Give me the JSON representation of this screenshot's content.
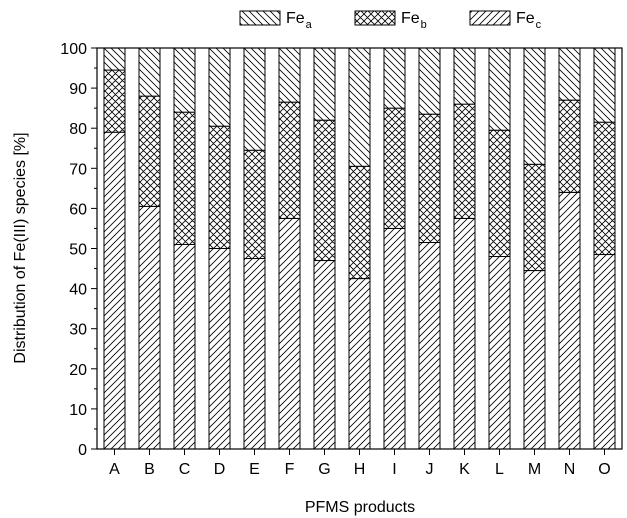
{
  "chart_data": {
    "type": "bar",
    "stacked": true,
    "percent_stacked": true,
    "xlabel": "PFMS products",
    "ylabel": "Distribution of Fe(III) species [%]",
    "ylim": [
      0,
      100
    ],
    "yticks": [
      0,
      10,
      20,
      30,
      40,
      50,
      60,
      70,
      80,
      90,
      100
    ],
    "grid": false,
    "legend_position": "top",
    "categories": [
      "A",
      "B",
      "C",
      "D",
      "E",
      "F",
      "G",
      "H",
      "I",
      "J",
      "K",
      "L",
      "M",
      "N",
      "O"
    ],
    "series": [
      {
        "name": "Fe_c",
        "label_main": "Fe",
        "label_sub": "c",
        "pattern": "forward-hatch",
        "values": [
          79,
          60.5,
          51,
          50,
          47.5,
          57.5,
          47,
          42.5,
          55,
          51.5,
          57.5,
          48,
          44.5,
          64,
          48.5
        ]
      },
      {
        "name": "Fe_b",
        "label_main": "Fe",
        "label_sub": "b",
        "pattern": "crosshatch",
        "values": [
          15.5,
          27.5,
          33,
          30.5,
          27,
          29,
          35,
          28,
          30,
          32,
          28.5,
          31.5,
          26.5,
          23,
          33
        ]
      },
      {
        "name": "Fe_a",
        "label_main": "Fe",
        "label_sub": "a",
        "pattern": "back-hatch",
        "values": [
          5.5,
          12,
          16,
          19.5,
          25.5,
          13.5,
          18,
          29.5,
          15,
          16.5,
          14,
          20.5,
          29,
          13,
          18.5
        ]
      }
    ]
  }
}
